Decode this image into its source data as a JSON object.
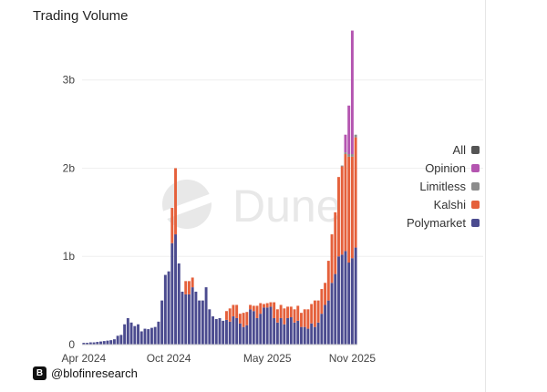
{
  "chart_data": {
    "type": "bar",
    "stacked": true,
    "title": "Trading Volume",
    "xlabel": "",
    "ylabel": "",
    "ylim": [
      0,
      3700000000
    ],
    "y_ticks": [
      {
        "value": 0,
        "label": "0"
      },
      {
        "value": 1000000000,
        "label": "1b"
      },
      {
        "value": 2000000000,
        "label": "2b"
      },
      {
        "value": 3000000000,
        "label": "3b"
      }
    ],
    "x_tick_labels": [
      {
        "label": "Apr 2024",
        "index": 0
      },
      {
        "label": "Oct 2024",
        "index": 25
      },
      {
        "label": "May 2025",
        "index": 54
      },
      {
        "label": "Nov 2025",
        "index": 79
      }
    ],
    "grid": "horizontal",
    "legend_position": "right",
    "legend": [
      {
        "name": "All",
        "color": "#555555"
      },
      {
        "name": "Opinion",
        "color": "#b455b0"
      },
      {
        "name": "Limitless",
        "color": "#8c8c8c"
      },
      {
        "name": "Kalshi",
        "color": "#e5603b"
      },
      {
        "name": "Polymarket",
        "color": "#4b4b8f"
      }
    ],
    "period": "weekly",
    "series": [
      {
        "name": "Polymarket",
        "color": "#4b4b8f",
        "values": [
          20000000,
          20000000,
          25000000,
          25000000,
          30000000,
          35000000,
          40000000,
          45000000,
          50000000,
          60000000,
          100000000,
          110000000,
          230000000,
          300000000,
          250000000,
          210000000,
          230000000,
          150000000,
          180000000,
          175000000,
          190000000,
          200000000,
          260000000,
          500000000,
          790000000,
          830000000,
          1150000000,
          1250000000,
          920000000,
          600000000,
          570000000,
          570000000,
          650000000,
          600000000,
          500000000,
          500000000,
          650000000,
          400000000,
          320000000,
          290000000,
          300000000,
          270000000,
          280000000,
          260000000,
          320000000,
          300000000,
          240000000,
          200000000,
          220000000,
          400000000,
          380000000,
          300000000,
          350000000,
          420000000,
          420000000,
          430000000,
          300000000,
          250000000,
          300000000,
          230000000,
          300000000,
          310000000,
          250000000,
          270000000,
          200000000,
          200000000,
          180000000,
          240000000,
          200000000,
          250000000,
          350000000,
          450000000,
          500000000,
          700000000,
          800000000,
          1000000000,
          1020000000,
          1060000000,
          930000000,
          980000000,
          1100000000
        ]
      },
      {
        "name": "Kalshi",
        "color": "#e5603b",
        "values": [
          0,
          0,
          0,
          0,
          0,
          0,
          0,
          0,
          0,
          0,
          0,
          0,
          0,
          0,
          0,
          0,
          0,
          0,
          0,
          0,
          0,
          0,
          0,
          0,
          0,
          0,
          400000000,
          750000000,
          0,
          0,
          150000000,
          150000000,
          110000000,
          0,
          0,
          0,
          0,
          0,
          0,
          0,
          0,
          0,
          100000000,
          150000000,
          130000000,
          150000000,
          110000000,
          160000000,
          150000000,
          50000000,
          60000000,
          140000000,
          120000000,
          40000000,
          50000000,
          50000000,
          180000000,
          150000000,
          150000000,
          180000000,
          130000000,
          120000000,
          150000000,
          170000000,
          160000000,
          200000000,
          220000000,
          220000000,
          300000000,
          250000000,
          280000000,
          250000000,
          450000000,
          550000000,
          700000000,
          900000000,
          1000000000,
          1100000000,
          1200000000,
          1150000000,
          1250000000
        ]
      },
      {
        "name": "Limitless",
        "color": "#8c8c8c",
        "values": [
          0,
          0,
          0,
          0,
          0,
          0,
          0,
          0,
          0,
          0,
          0,
          0,
          0,
          0,
          0,
          0,
          0,
          0,
          0,
          0,
          0,
          0,
          0,
          0,
          0,
          0,
          0,
          0,
          0,
          0,
          0,
          0,
          0,
          0,
          0,
          0,
          0,
          0,
          0,
          0,
          0,
          0,
          0,
          0,
          0,
          0,
          0,
          0,
          0,
          0,
          0,
          0,
          0,
          0,
          0,
          0,
          0,
          0,
          0,
          0,
          0,
          0,
          0,
          0,
          0,
          0,
          0,
          0,
          0,
          0,
          0,
          0,
          0,
          0,
          0,
          0,
          10000000,
          20000000,
          30000000,
          30000000,
          30000000
        ]
      },
      {
        "name": "Opinion",
        "color": "#b455b0",
        "values": [
          0,
          0,
          0,
          0,
          0,
          0,
          0,
          0,
          0,
          0,
          0,
          0,
          0,
          0,
          0,
          0,
          0,
          0,
          0,
          0,
          0,
          0,
          0,
          0,
          0,
          0,
          0,
          0,
          0,
          0,
          0,
          0,
          0,
          0,
          0,
          0,
          0,
          0,
          0,
          0,
          0,
          0,
          0,
          0,
          0,
          0,
          0,
          0,
          0,
          0,
          0,
          0,
          0,
          0,
          0,
          0,
          0,
          0,
          0,
          0,
          0,
          0,
          0,
          0,
          0,
          0,
          0,
          0,
          0,
          0,
          0,
          0,
          0,
          0,
          0,
          0,
          0,
          200000000,
          550000000,
          1400000000,
          0
        ]
      }
    ]
  },
  "watermark": {
    "text": "Dune"
  },
  "footer": {
    "logo_letter": "B",
    "handle": "@blofinresearch"
  }
}
